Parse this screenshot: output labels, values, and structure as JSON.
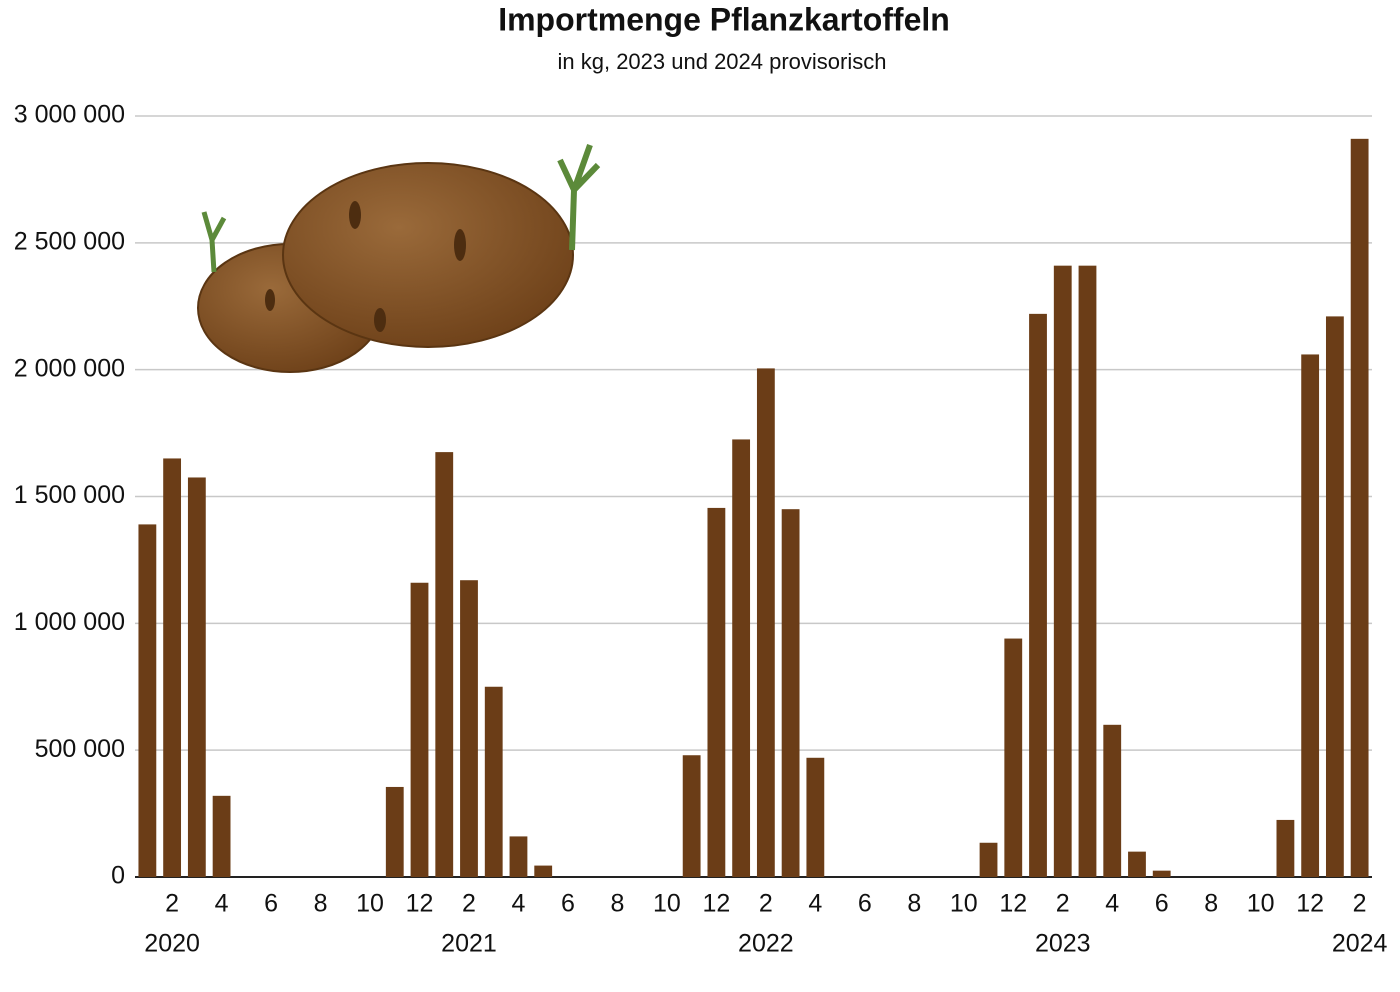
{
  "chart_data": {
    "type": "bar",
    "title": "Importmenge Pflanzkartoffeln",
    "subtitle": "in kg, 2023 und 2024 provisorisch",
    "categories": [
      null,
      "2",
      null,
      "4",
      null,
      "6",
      null,
      "8",
      null,
      "10",
      null,
      "12",
      null,
      "2",
      null,
      "4",
      null,
      "6",
      null,
      "8",
      null,
      "10",
      null,
      "12",
      null,
      "2",
      null,
      "4",
      null,
      "6",
      null,
      "8",
      null,
      "10",
      null,
      "12",
      null,
      "2",
      null,
      "4",
      null,
      "6",
      null,
      "8",
      null,
      "10",
      null,
      "12",
      null,
      "2"
    ],
    "category_years": [
      null,
      "2020",
      null,
      null,
      null,
      null,
      null,
      null,
      null,
      null,
      null,
      null,
      null,
      "2021",
      null,
      null,
      null,
      null,
      null,
      null,
      null,
      null,
      null,
      null,
      null,
      "2022",
      null,
      null,
      null,
      null,
      null,
      null,
      null,
      null,
      null,
      null,
      null,
      "2023",
      null,
      null,
      null,
      null,
      null,
      null,
      null,
      null,
      null,
      null,
      null,
      "2024"
    ],
    "values": [
      1390000,
      1650000,
      1575000,
      320000,
      0,
      0,
      0,
      0,
      0,
      0,
      355000,
      1160000,
      1675000,
      1170000,
      750000,
      160000,
      45000,
      0,
      0,
      0,
      0,
      0,
      480000,
      1455000,
      1725000,
      2005000,
      1450000,
      470000,
      0,
      0,
      0,
      0,
      0,
      0,
      135000,
      940000,
      2220000,
      2410000,
      2410000,
      600000,
      100000,
      25000,
      0,
      0,
      0,
      0,
      225000,
      2060000,
      2210000,
      2910000
    ],
    "color": "#6b3d17",
    "ylim": [
      0,
      3000000
    ],
    "yticks": [
      0,
      {
        "value": 500000,
        "label": "500 000"
      },
      {
        "value": 1000000,
        "label": "1 000 000"
      },
      {
        "value": 1500000,
        "label": "1 500 000"
      },
      {
        "value": 2000000,
        "label": "2 000 000"
      },
      {
        "value": 2500000,
        "label": "2 500 000"
      },
      {
        "value": 3000000,
        "label": "3 000 000"
      }
    ],
    "grid": true
  }
}
